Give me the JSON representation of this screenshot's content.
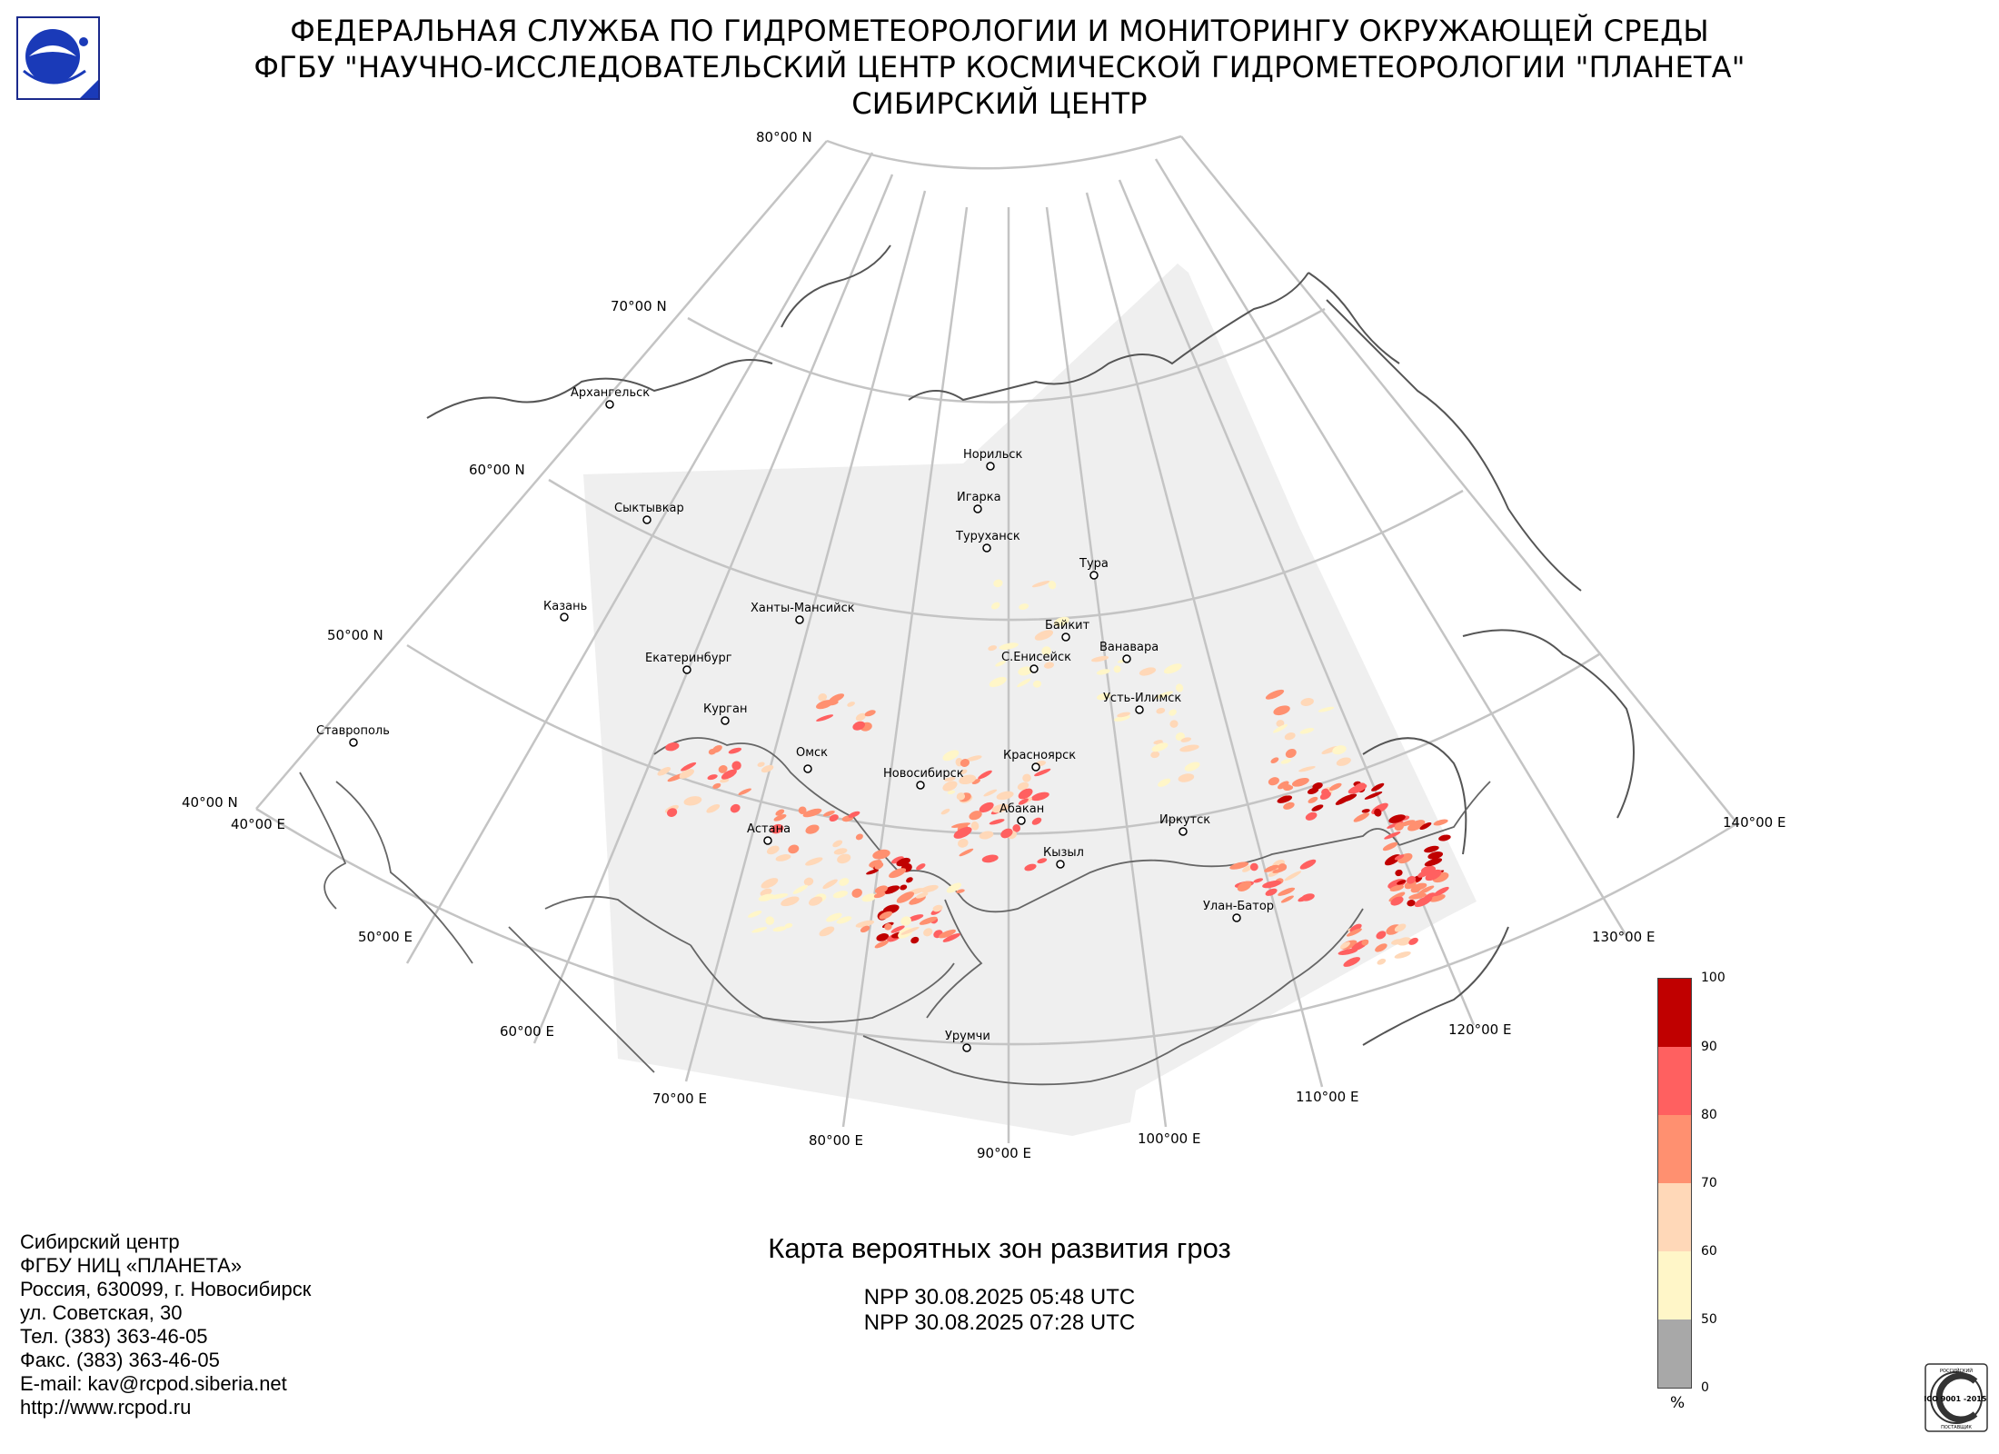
{
  "header": {
    "line1": "ФЕДЕРАЛЬНАЯ СЛУЖБА ПО ГИДРОМЕТЕОРОЛОГИИ И МОНИТОРИНГУ ОКРУЖАЮЩЕЙ СРЕДЫ",
    "line2": "ФГБУ \"НАУЧНО-ИССЛЕДОВАТЕЛЬСКИЙ ЦЕНТР КОСМИЧЕСКОЙ ГИДРОМЕТЕОРОЛОГИИ \"ПЛАНЕТА\"",
    "line3": "СИБИРСКИЙ ЦЕНТР"
  },
  "map": {
    "title": "Карта вероятных зон развития гроз",
    "passes": [
      "NPP 30.08.2025  05:48 UTC",
      "NPP 30.08.2025  07:28 UTC"
    ],
    "lat_labels": [
      "80°00 N",
      "70°00 N",
      "60°00 N",
      "50°00 N",
      "40°00 N"
    ],
    "lon_labels": [
      "40°00 E",
      "50°00 E",
      "60°00 E",
      "70°00 E",
      "80°00 E",
      "90°00 E",
      "100°00 E",
      "110°00 E",
      "120°00 E",
      "130°00 E",
      "140°00 E"
    ],
    "cities": [
      "Архангельск",
      "Сыктывкар",
      "Казань",
      "Екатеринбург",
      "Курган",
      "Ставрополь",
      "Ханты-Мансийск",
      "Омск",
      "Астана",
      "Новосибирск",
      "Норильск",
      "Игарка",
      "Туруханск",
      "Тура",
      "Байкит",
      "Ванавара",
      "С.Енисейск",
      "Усть-Илимск",
      "Красноярск",
      "Абакан",
      "Кызыл",
      "Иркутск",
      "Улан-Батор",
      "Урумчи"
    ]
  },
  "legend": {
    "unit": "%",
    "ticks": [
      "100",
      "90",
      "80",
      "70",
      "60",
      "50",
      "0"
    ],
    "colors": [
      "#c00000",
      "#ff6060",
      "#ff9070",
      "#ffd8b8",
      "#fff6c8",
      "#a8a8a8"
    ]
  },
  "contacts": {
    "lines": [
      "Сибирский центр",
      "ФГБУ НИЦ «ПЛАНЕТА»",
      "Россия, 630099, г. Новосибирск",
      "ул. Советская, 30",
      "Тел. (383) 363-46-05",
      "Факс. (383) 363-46-05",
      "E-mail: kav@rcpod.siberia.net",
      "http://www.rcpod.ru"
    ]
  },
  "iso_badge": {
    "text_top": "РОССИЙСКИЙ",
    "text_main": "ИСО 9001 -2015",
    "text_bottom": "ПОСТАВЩИК"
  }
}
